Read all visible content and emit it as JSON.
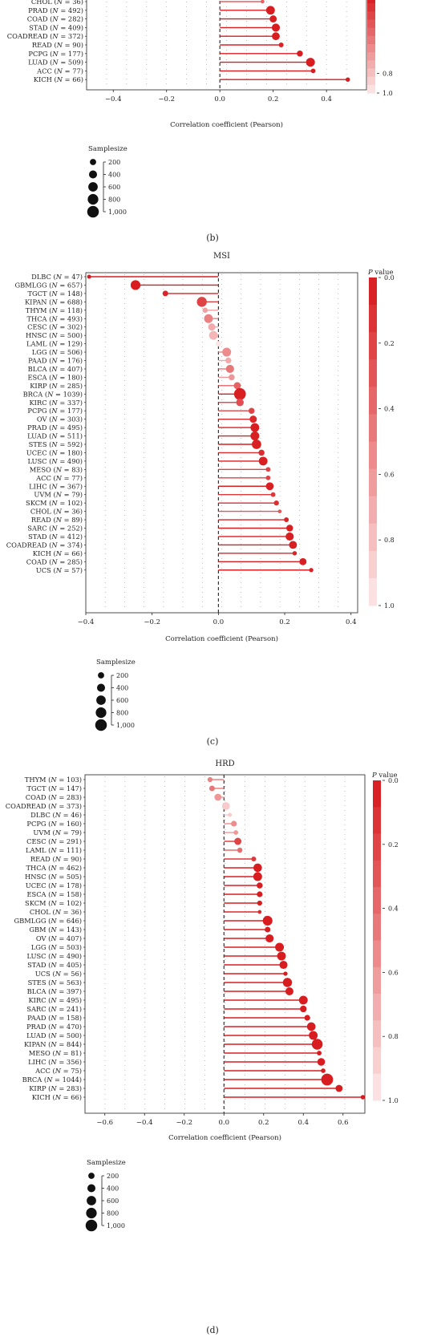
{
  "panel_labels": [
    "(b)",
    "(c)",
    "(d)"
  ],
  "pvalue_scale": {
    "title": "P value",
    "ticks": [
      "0.0",
      "0.2",
      "0.4",
      "0.6",
      "0.8",
      "1.0"
    ],
    "color_low": "#d7191c",
    "color_high": "#fdeaea"
  },
  "samplesize_legend": {
    "title": "Samplesize",
    "ticks": [
      "200",
      "400",
      "600",
      "800",
      "1,000"
    ]
  },
  "chart_data": [
    {
      "type": "scatter",
      "panel": "b",
      "title": "",
      "xlabel": "Correlation coefficient (Pearson)",
      "xlim": [
        -0.5,
        0.55
      ],
      "xticks": [
        -0.4,
        -0.2,
        0.0,
        0.2,
        0.4
      ],
      "xtick_labels": [
        "−0.4",
        "−0.2",
        "0.0",
        "0.2",
        "0.4"
      ],
      "points": [
        {
          "label": "CHOL",
          "n": "36",
          "r": 0.16,
          "p": 0.35,
          "size": 36
        },
        {
          "label": "PRAD",
          "n": "492",
          "r": 0.19,
          "p": 0.02,
          "size": 492
        },
        {
          "label": "COAD",
          "n": "282",
          "r": 0.2,
          "p": 0.02,
          "size": 282
        },
        {
          "label": "STAD",
          "n": "409",
          "r": 0.21,
          "p": 0.02,
          "size": 409
        },
        {
          "label": "COADREAD",
          "n": "372",
          "r": 0.21,
          "p": 0.02,
          "size": 372
        },
        {
          "label": "READ",
          "n": "90",
          "r": 0.23,
          "p": 0.05,
          "size": 90
        },
        {
          "label": "PCPG",
          "n": "177",
          "r": 0.3,
          "p": 0.02,
          "size": 177
        },
        {
          "label": "LUAD",
          "n": "509",
          "r": 0.34,
          "p": 0.02,
          "size": 509
        },
        {
          "label": "ACC",
          "n": "77",
          "r": 0.35,
          "p": 0.02,
          "size": 77
        },
        {
          "label": "KICH",
          "n": "66",
          "r": 0.48,
          "p": 0.02,
          "size": 66
        }
      ]
    },
    {
      "type": "scatter",
      "panel": "c",
      "title": "MSI",
      "xlabel": "Correlation coefficient (Pearson)",
      "xlim": [
        -0.4,
        0.42
      ],
      "xticks": [
        -0.4,
        -0.2,
        0.0,
        0.2,
        0.4
      ],
      "xtick_labels": [
        "−0.4",
        "−0.2",
        "0.0",
        "0.2",
        "0.4"
      ],
      "points": [
        {
          "label": "DLBC",
          "n": "47",
          "r": -0.39,
          "p": 0.02,
          "size": 47
        },
        {
          "label": "GBMLGG",
          "n": "657",
          "r": -0.25,
          "p": 0.02,
          "size": 657
        },
        {
          "label": "TGCT",
          "n": "148",
          "r": -0.16,
          "p": 0.05,
          "size": 148
        },
        {
          "label": "KIPAN",
          "n": "688",
          "r": -0.05,
          "p": 0.2,
          "size": 688
        },
        {
          "label": "THYM",
          "n": "118",
          "r": -0.04,
          "p": 0.65,
          "size": 118
        },
        {
          "label": "THCA",
          "n": "493",
          "r": -0.03,
          "p": 0.5,
          "size": 493
        },
        {
          "label": "CESC",
          "n": "302",
          "r": -0.02,
          "p": 0.7,
          "size": 302
        },
        {
          "label": "HNSC",
          "n": "500",
          "r": -0.015,
          "p": 0.75,
          "size": 500
        },
        {
          "label": "LAML",
          "n": "129",
          "r": 0.0,
          "p": 0.98,
          "size": 129
        },
        {
          "label": "LGG",
          "n": "506",
          "r": 0.025,
          "p": 0.55,
          "size": 506
        },
        {
          "label": "PAAD",
          "n": "176",
          "r": 0.03,
          "p": 0.7,
          "size": 176
        },
        {
          "label": "BLCA",
          "n": "407",
          "r": 0.035,
          "p": 0.45,
          "size": 407
        },
        {
          "label": "ESCA",
          "n": "180",
          "r": 0.04,
          "p": 0.6,
          "size": 180
        },
        {
          "label": "KIRP",
          "n": "285",
          "r": 0.057,
          "p": 0.35,
          "size": 285
        },
        {
          "label": "BRCA",
          "n": "1039",
          "r": 0.065,
          "p": 0.03,
          "size": 1039
        },
        {
          "label": "KIRC",
          "n": "337",
          "r": 0.065,
          "p": 0.25,
          "size": 337
        },
        {
          "label": "PCPG",
          "n": "177",
          "r": 0.1,
          "p": 0.2,
          "size": 177
        },
        {
          "label": "OV",
          "n": "303",
          "r": 0.105,
          "p": 0.08,
          "size": 303
        },
        {
          "label": "PRAD",
          "n": "495",
          "r": 0.11,
          "p": 0.03,
          "size": 495
        },
        {
          "label": "LUAD",
          "n": "511",
          "r": 0.11,
          "p": 0.03,
          "size": 511
        },
        {
          "label": "STES",
          "n": "592",
          "r": 0.115,
          "p": 0.03,
          "size": 592
        },
        {
          "label": "UCEC",
          "n": "180",
          "r": 0.13,
          "p": 0.1,
          "size": 180
        },
        {
          "label": "LUSC",
          "n": "490",
          "r": 0.135,
          "p": 0.03,
          "size": 490
        },
        {
          "label": "MESO",
          "n": "83",
          "r": 0.15,
          "p": 0.2,
          "size": 83
        },
        {
          "label": "ACC",
          "n": "77",
          "r": 0.15,
          "p": 0.2,
          "size": 77
        },
        {
          "label": "LIHC",
          "n": "367",
          "r": 0.155,
          "p": 0.03,
          "size": 367
        },
        {
          "label": "UVM",
          "n": "79",
          "r": 0.165,
          "p": 0.15,
          "size": 79
        },
        {
          "label": "SKCM",
          "n": "102",
          "r": 0.175,
          "p": 0.1,
          "size": 102
        },
        {
          "label": "CHOL",
          "n": "36",
          "r": 0.185,
          "p": 0.3,
          "size": 36
        },
        {
          "label": "READ",
          "n": "89",
          "r": 0.205,
          "p": 0.05,
          "size": 89
        },
        {
          "label": "SARC",
          "n": "252",
          "r": 0.215,
          "p": 0.03,
          "size": 252
        },
        {
          "label": "STAD",
          "n": "412",
          "r": 0.215,
          "p": 0.03,
          "size": 412
        },
        {
          "label": "COADREAD",
          "n": "374",
          "r": 0.225,
          "p": 0.03,
          "size": 374
        },
        {
          "label": "KICH",
          "n": "66",
          "r": 0.23,
          "p": 0.06,
          "size": 66
        },
        {
          "label": "COAD",
          "n": "285",
          "r": 0.255,
          "p": 0.03,
          "size": 285
        },
        {
          "label": "UCS",
          "n": "57",
          "r": 0.28,
          "p": 0.04,
          "size": 57
        }
      ]
    },
    {
      "type": "scatter",
      "panel": "d",
      "title": "HRD",
      "xlabel": "Correlation coefficient (Pearson)",
      "xlim": [
        -0.7,
        0.71
      ],
      "xticks": [
        -0.6,
        -0.4,
        -0.2,
        0.0,
        0.2,
        0.4,
        0.6
      ],
      "xtick_labels": [
        "−0.6",
        "−0.4",
        "−0.2",
        "0.0",
        "0.2",
        "0.4",
        "0.6"
      ],
      "points": [
        {
          "label": "THYM",
          "n": "103",
          "r": -0.07,
          "p": 0.5,
          "size": 103
        },
        {
          "label": "TGCT",
          "n": "147",
          "r": -0.06,
          "p": 0.45,
          "size": 147
        },
        {
          "label": "COAD",
          "n": "283",
          "r": -0.03,
          "p": 0.6,
          "size": 283
        },
        {
          "label": "COADREAD",
          "n": "373",
          "r": 0.01,
          "p": 0.85,
          "size": 373
        },
        {
          "label": "DLBC",
          "n": "46",
          "r": 0.03,
          "p": 0.85,
          "size": 46
        },
        {
          "label": "PCPG",
          "n": "160",
          "r": 0.05,
          "p": 0.55,
          "size": 160
        },
        {
          "label": "UVM",
          "n": "79",
          "r": 0.06,
          "p": 0.6,
          "size": 79
        },
        {
          "label": "CESC",
          "n": "291",
          "r": 0.07,
          "p": 0.2,
          "size": 291
        },
        {
          "label": "LAML",
          "n": "111",
          "r": 0.08,
          "p": 0.4,
          "size": 111
        },
        {
          "label": "READ",
          "n": "90",
          "r": 0.15,
          "p": 0.15,
          "size": 90
        },
        {
          "label": "THCA",
          "n": "462",
          "r": 0.17,
          "p": 0.02,
          "size": 462
        },
        {
          "label": "HNSC",
          "n": "505",
          "r": 0.17,
          "p": 0.02,
          "size": 505
        },
        {
          "label": "UCEC",
          "n": "178",
          "r": 0.18,
          "p": 0.02,
          "size": 178
        },
        {
          "label": "ESCA",
          "n": "158",
          "r": 0.18,
          "p": 0.02,
          "size": 158
        },
        {
          "label": "SKCM",
          "n": "102",
          "r": 0.18,
          "p": 0.02,
          "size": 102
        },
        {
          "label": "CHOL",
          "n": "36",
          "r": 0.18,
          "p": 0.08,
          "size": 36
        },
        {
          "label": "GBMLGG",
          "n": "646",
          "r": 0.22,
          "p": 0.02,
          "size": 646
        },
        {
          "label": "GBM",
          "n": "143",
          "r": 0.22,
          "p": 0.02,
          "size": 143
        },
        {
          "label": "OV",
          "n": "407",
          "r": 0.23,
          "p": 0.02,
          "size": 407
        },
        {
          "label": "LGG",
          "n": "503",
          "r": 0.28,
          "p": 0.02,
          "size": 503
        },
        {
          "label": "LUSC",
          "n": "490",
          "r": 0.29,
          "p": 0.02,
          "size": 490
        },
        {
          "label": "STAD",
          "n": "405",
          "r": 0.3,
          "p": 0.02,
          "size": 405
        },
        {
          "label": "UCS",
          "n": "56",
          "r": 0.31,
          "p": 0.02,
          "size": 56
        },
        {
          "label": "STES",
          "n": "563",
          "r": 0.32,
          "p": 0.02,
          "size": 563
        },
        {
          "label": "BLCA",
          "n": "397",
          "r": 0.33,
          "p": 0.02,
          "size": 397
        },
        {
          "label": "KIRC",
          "n": "495",
          "r": 0.4,
          "p": 0.02,
          "size": 495
        },
        {
          "label": "SARC",
          "n": "241",
          "r": 0.4,
          "p": 0.02,
          "size": 241
        },
        {
          "label": "PAAD",
          "n": "158",
          "r": 0.42,
          "p": 0.02,
          "size": 158
        },
        {
          "label": "PRAD",
          "n": "470",
          "r": 0.44,
          "p": 0.02,
          "size": 470
        },
        {
          "label": "LUAD",
          "n": "500",
          "r": 0.45,
          "p": 0.02,
          "size": 500
        },
        {
          "label": "KIPAN",
          "n": "844",
          "r": 0.47,
          "p": 0.02,
          "size": 844
        },
        {
          "label": "MESO",
          "n": "81",
          "r": 0.48,
          "p": 0.02,
          "size": 81
        },
        {
          "label": "LIHC",
          "n": "356",
          "r": 0.49,
          "p": 0.02,
          "size": 356
        },
        {
          "label": "ACC",
          "n": "75",
          "r": 0.5,
          "p": 0.02,
          "size": 75
        },
        {
          "label": "BRCA",
          "n": "1044",
          "r": 0.52,
          "p": 0.02,
          "size": 1044
        },
        {
          "label": "KIRP",
          "n": "283",
          "r": 0.58,
          "p": 0.02,
          "size": 283
        },
        {
          "label": "KICH",
          "n": "66",
          "r": 0.7,
          "p": 0.02,
          "size": 66
        }
      ]
    }
  ]
}
